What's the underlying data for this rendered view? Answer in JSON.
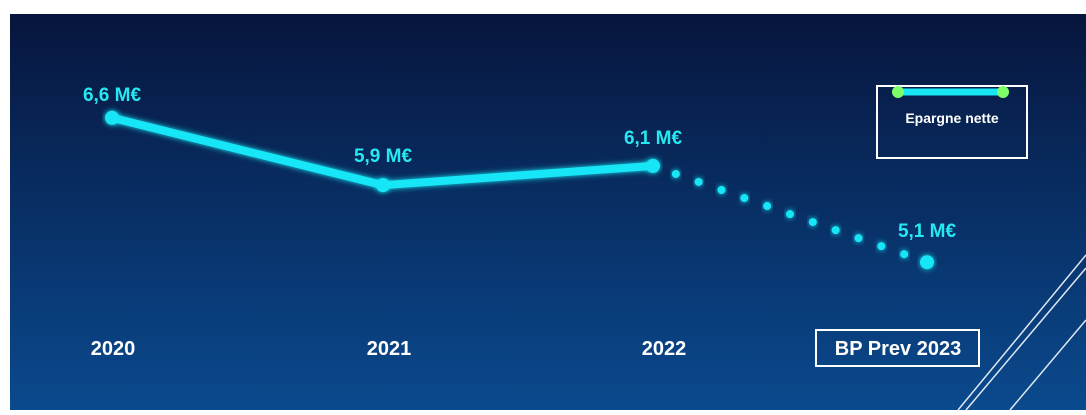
{
  "colors": {
    "line": "#19e6f5",
    "marker_fill": "#19e6f5",
    "legend_marker": "#7dff6a",
    "axis_text": "#ffffff",
    "value_text": "#27e8f0",
    "bg_top": "#07153d",
    "bg_bottom": "#0a4a8e"
  },
  "chart_data": {
    "type": "line",
    "categories": [
      "2020",
      "2021",
      "2022",
      "BP Prev 2023"
    ],
    "series": [
      {
        "name": "Epargne nette",
        "values": [
          6.6,
          5.9,
          6.1,
          5.1
        ],
        "data_labels": [
          "6,6 M€",
          "5,9 M€",
          "6,1 M€",
          "5,1 M€"
        ],
        "solid_until_index": 2,
        "dotted_from_index": 2
      }
    ],
    "title": "",
    "xlabel": "",
    "ylabel": "",
    "unit": "M€",
    "ylim": [
      4.5,
      7.2
    ],
    "grid": false,
    "legend_position": "top-right",
    "highlighted_category": "BP Prev 2023"
  }
}
